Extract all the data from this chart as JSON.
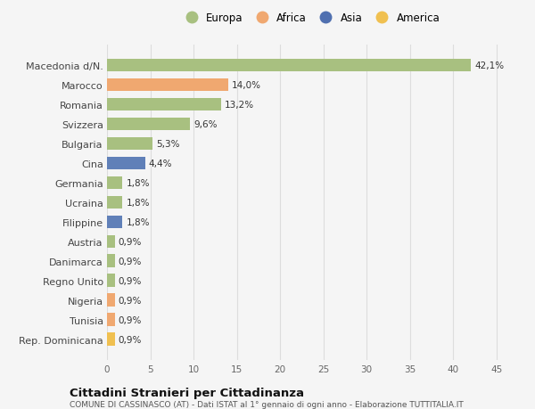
{
  "countries": [
    "Macedonia d/N.",
    "Marocco",
    "Romania",
    "Svizzera",
    "Bulgaria",
    "Cina",
    "Germania",
    "Ucraina",
    "Filippine",
    "Austria",
    "Danimarca",
    "Regno Unito",
    "Nigeria",
    "Tunisia",
    "Rep. Dominicana"
  ],
  "values": [
    42.1,
    14.0,
    13.2,
    9.6,
    5.3,
    4.4,
    1.8,
    1.8,
    1.8,
    0.9,
    0.9,
    0.9,
    0.9,
    0.9,
    0.9
  ],
  "labels": [
    "42,1%",
    "14,0%",
    "13,2%",
    "9,6%",
    "5,3%",
    "4,4%",
    "1,8%",
    "1,8%",
    "1,8%",
    "0,9%",
    "0,9%",
    "0,9%",
    "0,9%",
    "0,9%",
    "0,9%"
  ],
  "colors": [
    "#a8c080",
    "#f0a870",
    "#a8c080",
    "#a8c080",
    "#a8c080",
    "#6080b8",
    "#a8c080",
    "#a8c080",
    "#6080b8",
    "#a8c080",
    "#a8c080",
    "#a8c080",
    "#f0a870",
    "#f0a870",
    "#f0c050"
  ],
  "legend_labels": [
    "Europa",
    "Africa",
    "Asia",
    "America"
  ],
  "legend_colors": [
    "#a8c080",
    "#f0a870",
    "#5070b0",
    "#f0c050"
  ],
  "title": "Cittadini Stranieri per Cittadinanza",
  "subtitle": "COMUNE DI CASSINASCO (AT) - Dati ISTAT al 1° gennaio di ogni anno - Elaborazione TUTTITALIA.IT",
  "xlim": [
    0,
    47
  ],
  "xticks": [
    0,
    5,
    10,
    15,
    20,
    25,
    30,
    35,
    40,
    45
  ],
  "background_color": "#f5f5f5",
  "grid_color": "#dddddd",
  "bar_height": 0.65
}
